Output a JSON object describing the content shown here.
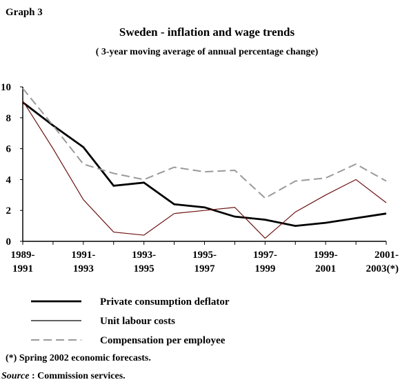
{
  "header": "Graph 3",
  "chart_data": {
    "type": "line",
    "title": "Sweden - inflation and wage trends",
    "subtitle": "( 3-year moving average of annual percentage change)",
    "categories": [
      "1989-\n1991",
      null,
      "1991-\n1993",
      null,
      "1993-\n1995",
      null,
      "1995-\n1997",
      null,
      "1997-\n1999",
      null,
      "1999-\n2001",
      null,
      "2001-\n2003(*)"
    ],
    "series": [
      {
        "name": "Private consumption deflator",
        "color": "#000000",
        "style": "thick",
        "values": [
          9.0,
          7.5,
          6.1,
          3.6,
          3.8,
          2.4,
          2.2,
          1.6,
          1.4,
          1.0,
          1.2,
          1.5,
          1.8
        ]
      },
      {
        "name": "Unit labour costs",
        "color": "#6b1010",
        "style": "thin",
        "values": [
          9.1,
          6.0,
          2.7,
          0.6,
          0.4,
          1.8,
          2.0,
          2.2,
          0.2,
          1.9,
          3.0,
          4.0,
          2.5
        ]
      },
      {
        "name": "Compensation per employee",
        "color": "#999999",
        "style": "dashed",
        "values": [
          9.9,
          7.5,
          5.0,
          4.4,
          4.0,
          4.8,
          4.5,
          4.6,
          2.8,
          3.9,
          4.1,
          5.0,
          3.9
        ]
      }
    ],
    "ylim": [
      0,
      10
    ],
    "yticks": [
      0,
      2,
      4,
      6,
      8,
      10
    ],
    "grid": false
  },
  "footnote": "(*) Spring 2002 economic forecasts.",
  "source_label": "Source",
  "source_text": " : Commission services."
}
